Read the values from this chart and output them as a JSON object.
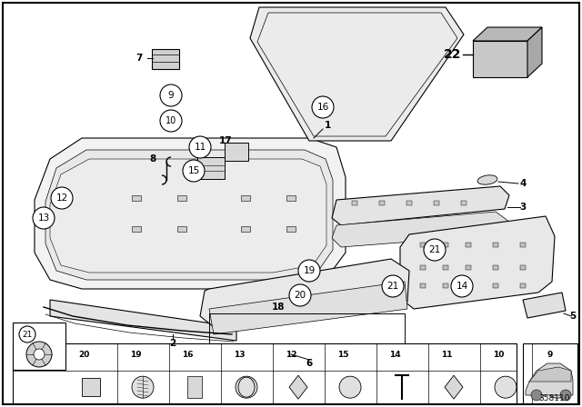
{
  "bg_color": "#ffffff",
  "diagram_number": "358110",
  "line_color": "#000000",
  "fill_light": "#f0f0f0",
  "fill_mid": "#e0e0e0",
  "fill_dark": "#c8c8c8"
}
